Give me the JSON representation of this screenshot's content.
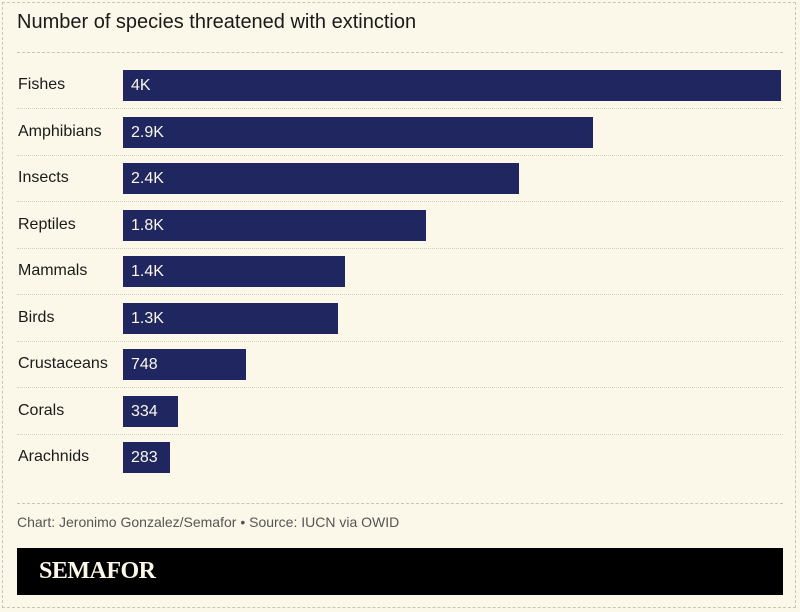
{
  "chart_data": {
    "type": "bar",
    "orientation": "horizontal",
    "title": "Number of species threatened with extinction",
    "categories": [
      "Fishes",
      "Amphibians",
      "Insects",
      "Reptiles",
      "Mammals",
      "Birds",
      "Crustaceans",
      "Corals",
      "Arachnids"
    ],
    "values": [
      4000,
      2860,
      2410,
      1840,
      1350,
      1310,
      748,
      334,
      283
    ],
    "data_labels": [
      "4K",
      "2.9K",
      "2.4K",
      "1.8K",
      "1.4K",
      "1.3K",
      "748",
      "334",
      "283"
    ],
    "xlim": [
      0,
      4000
    ],
    "grid": false,
    "bar_color": "#1f2660"
  },
  "source": "Chart: Jeronimo Gonzalez/Semafor • Source: IUCN via OWID",
  "brand": "SEMAFOR",
  "colors": {
    "background": "#fbf8e9",
    "bar": "#1f2660",
    "brand_bar": "#000000"
  }
}
